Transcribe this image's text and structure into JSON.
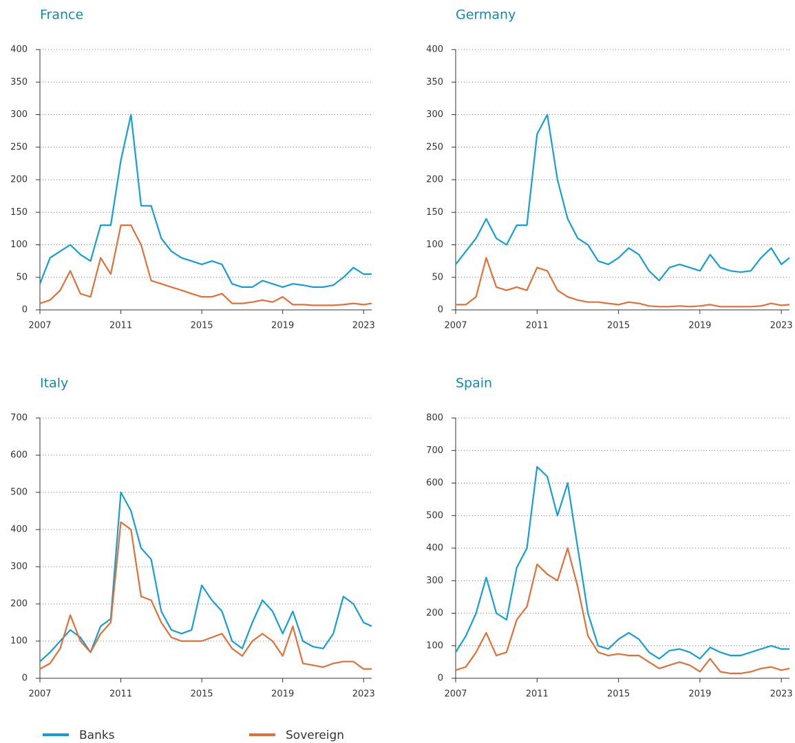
{
  "chart_data": [
    {
      "type": "line",
      "title": "France",
      "x": [
        2007,
        2007.5,
        2008,
        2008.5,
        2009,
        2009.5,
        2010,
        2010.5,
        2011,
        2011.5,
        2012,
        2012.5,
        2013,
        2013.5,
        2014,
        2014.5,
        2015,
        2015.5,
        2016,
        2016.5,
        2017,
        2017.5,
        2018,
        2018.5,
        2019,
        2019.5,
        2020,
        2020.5,
        2021,
        2021.5,
        2022,
        2022.5,
        2023,
        2023.4
      ],
      "series": [
        {
          "name": "Banks",
          "color": "#129fd9",
          "values": [
            40,
            80,
            90,
            100,
            85,
            75,
            130,
            130,
            230,
            300,
            160,
            160,
            110,
            90,
            80,
            75,
            70,
            75,
            70,
            40,
            35,
            35,
            45,
            40,
            35,
            40,
            38,
            35,
            35,
            38,
            50,
            65,
            55,
            55
          ]
        },
        {
          "name": "Sovereign",
          "color": "#e26f35",
          "values": [
            10,
            15,
            30,
            60,
            25,
            20,
            80,
            55,
            130,
            130,
            100,
            45,
            40,
            35,
            30,
            25,
            20,
            20,
            25,
            10,
            10,
            12,
            15,
            12,
            20,
            8,
            8,
            7,
            7,
            7,
            8,
            10,
            8,
            10
          ]
        }
      ],
      "xlim": [
        2007,
        2023.4
      ],
      "xticks": [
        2007,
        2011,
        2015,
        2019,
        2023
      ],
      "ylim": [
        0,
        400
      ],
      "yticks": [
        0,
        50,
        100,
        150,
        200,
        250,
        300,
        350,
        400
      ],
      "grid": true
    },
    {
      "type": "line",
      "title": "Germany",
      "x": [
        2007,
        2007.5,
        2008,
        2008.5,
        2009,
        2009.5,
        2010,
        2010.5,
        2011,
        2011.5,
        2012,
        2012.5,
        2013,
        2013.5,
        2014,
        2014.5,
        2015,
        2015.5,
        2016,
        2016.5,
        2017,
        2017.5,
        2018,
        2018.5,
        2019,
        2019.5,
        2020,
        2020.5,
        2021,
        2021.5,
        2022,
        2022.5,
        2023,
        2023.4
      ],
      "series": [
        {
          "name": "Banks",
          "color": "#129fd9",
          "values": [
            70,
            90,
            110,
            140,
            110,
            100,
            130,
            130,
            270,
            300,
            200,
            140,
            110,
            100,
            75,
            70,
            80,
            95,
            85,
            60,
            45,
            65,
            70,
            65,
            60,
            85,
            65,
            60,
            58,
            60,
            80,
            95,
            70,
            80
          ]
        },
        {
          "name": "Sovereign",
          "color": "#e26f35",
          "values": [
            8,
            8,
            20,
            80,
            35,
            30,
            35,
            30,
            65,
            60,
            30,
            20,
            15,
            12,
            12,
            10,
            8,
            12,
            10,
            6,
            5,
            5,
            6,
            5,
            6,
            8,
            5,
            5,
            5,
            5,
            6,
            10,
            7,
            8
          ]
        }
      ],
      "xlim": [
        2007,
        2023.4
      ],
      "xticks": [
        2007,
        2011,
        2015,
        2019,
        2023
      ],
      "ylim": [
        0,
        400
      ],
      "yticks": [
        0,
        50,
        100,
        150,
        200,
        250,
        300,
        350,
        400
      ],
      "grid": true
    },
    {
      "type": "line",
      "title": "Italy",
      "x": [
        2007,
        2007.5,
        2008,
        2008.5,
        2009,
        2009.5,
        2010,
        2010.5,
        2011,
        2011.5,
        2012,
        2012.5,
        2013,
        2013.5,
        2014,
        2014.5,
        2015,
        2015.5,
        2016,
        2016.5,
        2017,
        2017.5,
        2018,
        2018.5,
        2019,
        2019.5,
        2020,
        2020.5,
        2021,
        2021.5,
        2022,
        2022.5,
        2023,
        2023.4
      ],
      "series": [
        {
          "name": "Banks",
          "color": "#129fd9",
          "values": [
            45,
            70,
            100,
            130,
            110,
            70,
            140,
            160,
            500,
            450,
            350,
            320,
            180,
            130,
            120,
            130,
            250,
            210,
            180,
            100,
            80,
            150,
            210,
            180,
            120,
            180,
            100,
            85,
            80,
            120,
            220,
            200,
            150,
            140
          ]
        },
        {
          "name": "Sovereign",
          "color": "#e26f35",
          "values": [
            25,
            40,
            80,
            170,
            100,
            70,
            120,
            150,
            420,
            400,
            220,
            210,
            150,
            110,
            100,
            100,
            100,
            110,
            120,
            80,
            60,
            100,
            120,
            100,
            60,
            140,
            40,
            35,
            30,
            40,
            45,
            45,
            25,
            25
          ]
        }
      ],
      "xlim": [
        2007,
        2023.4
      ],
      "xticks": [
        2007,
        2011,
        2015,
        2019,
        2023
      ],
      "ylim": [
        0,
        700
      ],
      "yticks": [
        0,
        100,
        200,
        300,
        400,
        500,
        600,
        700
      ],
      "grid": true
    },
    {
      "type": "line",
      "title": "Spain",
      "x": [
        2007,
        2007.5,
        2008,
        2008.5,
        2009,
        2009.5,
        2010,
        2010.5,
        2011,
        2011.5,
        2012,
        2012.5,
        2013,
        2013.5,
        2014,
        2014.5,
        2015,
        2015.5,
        2016,
        2016.5,
        2017,
        2017.5,
        2018,
        2018.5,
        2019,
        2019.5,
        2020,
        2020.5,
        2021,
        2021.5,
        2022,
        2022.5,
        2023,
        2023.4
      ],
      "series": [
        {
          "name": "Banks",
          "color": "#129fd9",
          "values": [
            80,
            130,
            200,
            310,
            200,
            180,
            340,
            400,
            650,
            620,
            500,
            600,
            400,
            200,
            100,
            90,
            120,
            140,
            120,
            80,
            60,
            85,
            90,
            80,
            60,
            95,
            80,
            70,
            70,
            80,
            90,
            100,
            90,
            90
          ]
        },
        {
          "name": "Sovereign",
          "color": "#e26f35",
          "values": [
            25,
            35,
            80,
            140,
            70,
            80,
            180,
            220,
            350,
            320,
            300,
            400,
            280,
            130,
            80,
            70,
            75,
            70,
            70,
            50,
            30,
            40,
            50,
            40,
            20,
            60,
            20,
            15,
            15,
            20,
            30,
            35,
            25,
            30
          ]
        }
      ],
      "xlim": [
        2007,
        2023.4
      ],
      "xticks": [
        2007,
        2011,
        2015,
        2019,
        2023
      ],
      "ylim": [
        0,
        800
      ],
      "yticks": [
        0,
        100,
        200,
        300,
        400,
        500,
        600,
        700,
        800
      ],
      "grid": true
    }
  ]
}
